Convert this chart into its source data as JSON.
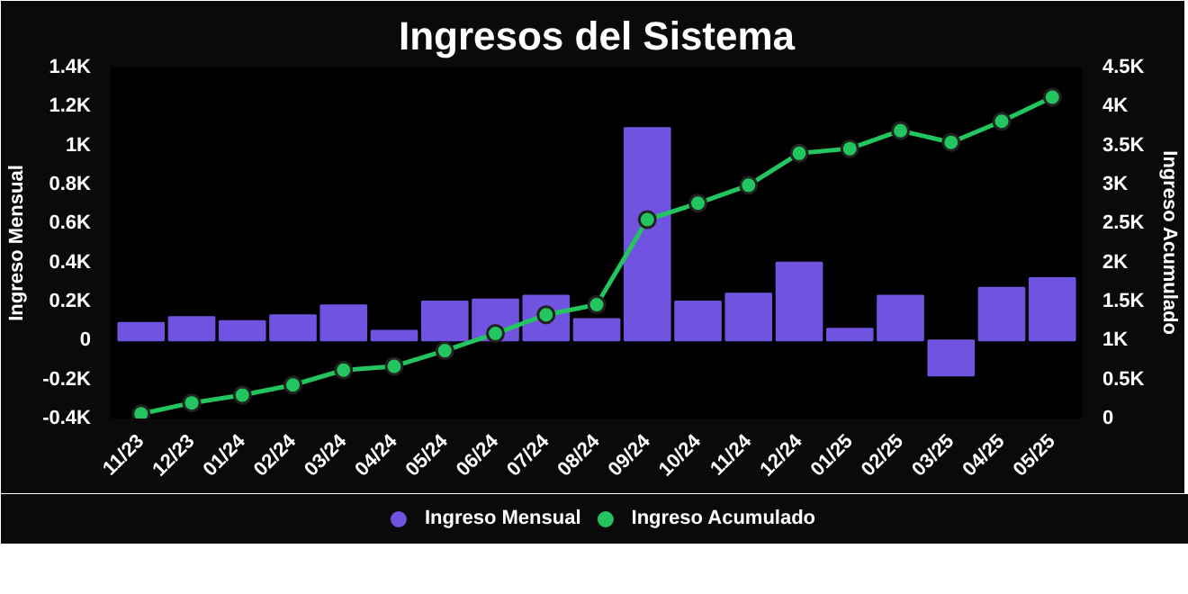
{
  "chart_data": {
    "type": "bar",
    "title": "Ingresos del Sistema",
    "categories": [
      "11/23",
      "12/23",
      "01/24",
      "02/24",
      "03/24",
      "04/24",
      "05/24",
      "06/24",
      "07/24",
      "08/24",
      "09/24",
      "10/24",
      "11/24",
      "12/24",
      "01/25",
      "02/25",
      "03/25",
      "04/25",
      "05/25"
    ],
    "series": [
      {
        "name": "Ingreso Mensual",
        "color": "#7053e0",
        "values": [
          90,
          120,
          100,
          130,
          180,
          50,
          200,
          210,
          230,
          110,
          1090,
          200,
          240,
          400,
          60,
          230,
          -180,
          270,
          320
        ]
      },
      {
        "name": "Ingreso Acumulado",
        "type": "line",
        "axis": "y2",
        "color": "#22c55e",
        "values": [
          60,
          200,
          300,
          430,
          620,
          670,
          870,
          1090,
          1330,
          1460,
          2550,
          2760,
          2990,
          3400,
          3460,
          3690,
          3540,
          3810,
          4120
        ]
      }
    ],
    "ylabel": "Ingreso Mensual",
    "y2label": "Ingreso Acumulado",
    "ylim": [
      -400,
      1400
    ],
    "yticks": [
      {
        "value": -400,
        "label": "-0.4K"
      },
      {
        "value": -200,
        "label": "-0.2K"
      },
      0,
      {
        "value": 200,
        "label": "0.2K"
      },
      {
        "value": 400,
        "label": "0.4K"
      },
      {
        "value": 600,
        "label": "0.6K"
      },
      {
        "value": 800,
        "label": "0.8K"
      },
      {
        "value": 1000,
        "label": "1K"
      },
      {
        "value": 1200,
        "label": "1.2K"
      },
      {
        "value": 1400,
        "label": "1.4K"
      }
    ],
    "y2lim": [
      0,
      4500
    ],
    "y2ticks": [
      0,
      {
        "value": 500,
        "label": "0.5K"
      },
      {
        "value": 1000,
        "label": "1K"
      },
      {
        "value": 1500,
        "label": "1.5K"
      },
      {
        "value": 2000,
        "label": "2K"
      },
      {
        "value": 2500,
        "label": "2.5K"
      },
      {
        "value": 3000,
        "label": "3K"
      },
      {
        "value": 3500,
        "label": "3.5K"
      },
      {
        "value": 4000,
        "label": "4K"
      },
      {
        "value": 4500,
        "label": "4.5K"
      }
    ],
    "grid": false,
    "legend": "bottom",
    "marker": "circle"
  }
}
